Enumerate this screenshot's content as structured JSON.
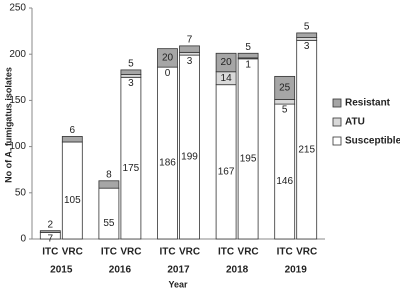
{
  "chart_data": {
    "type": "stacked-bar",
    "y_label": "No of A. fumigatus isolates",
    "x_label": "Year",
    "groups": [
      "2015",
      "2016",
      "2017",
      "2018",
      "2019"
    ],
    "categories": [
      "ITC",
      "VRC",
      "ITC",
      "VRC",
      "ITC",
      "VRC",
      "ITC",
      "VRC",
      "ITC",
      "VRC"
    ],
    "series": [
      {
        "name": "Susceptible",
        "color": "#ffffff",
        "values": [
          7,
          105,
          55,
          175,
          186,
          199,
          167,
          195,
          146,
          215
        ]
      },
      {
        "name": "ATU",
        "color": "#d9d9d9",
        "values": [
          null,
          null,
          null,
          3,
          0,
          3,
          14,
          1,
          5,
          3
        ]
      },
      {
        "name": "Resistant",
        "color": "#a6a6a6",
        "values": [
          2,
          6,
          8,
          5,
          20,
          7,
          20,
          5,
          25,
          5
        ]
      }
    ],
    "ylim": [
      0,
      250
    ],
    "yticks": [
      0,
      50,
      100,
      150,
      200,
      250
    ]
  }
}
